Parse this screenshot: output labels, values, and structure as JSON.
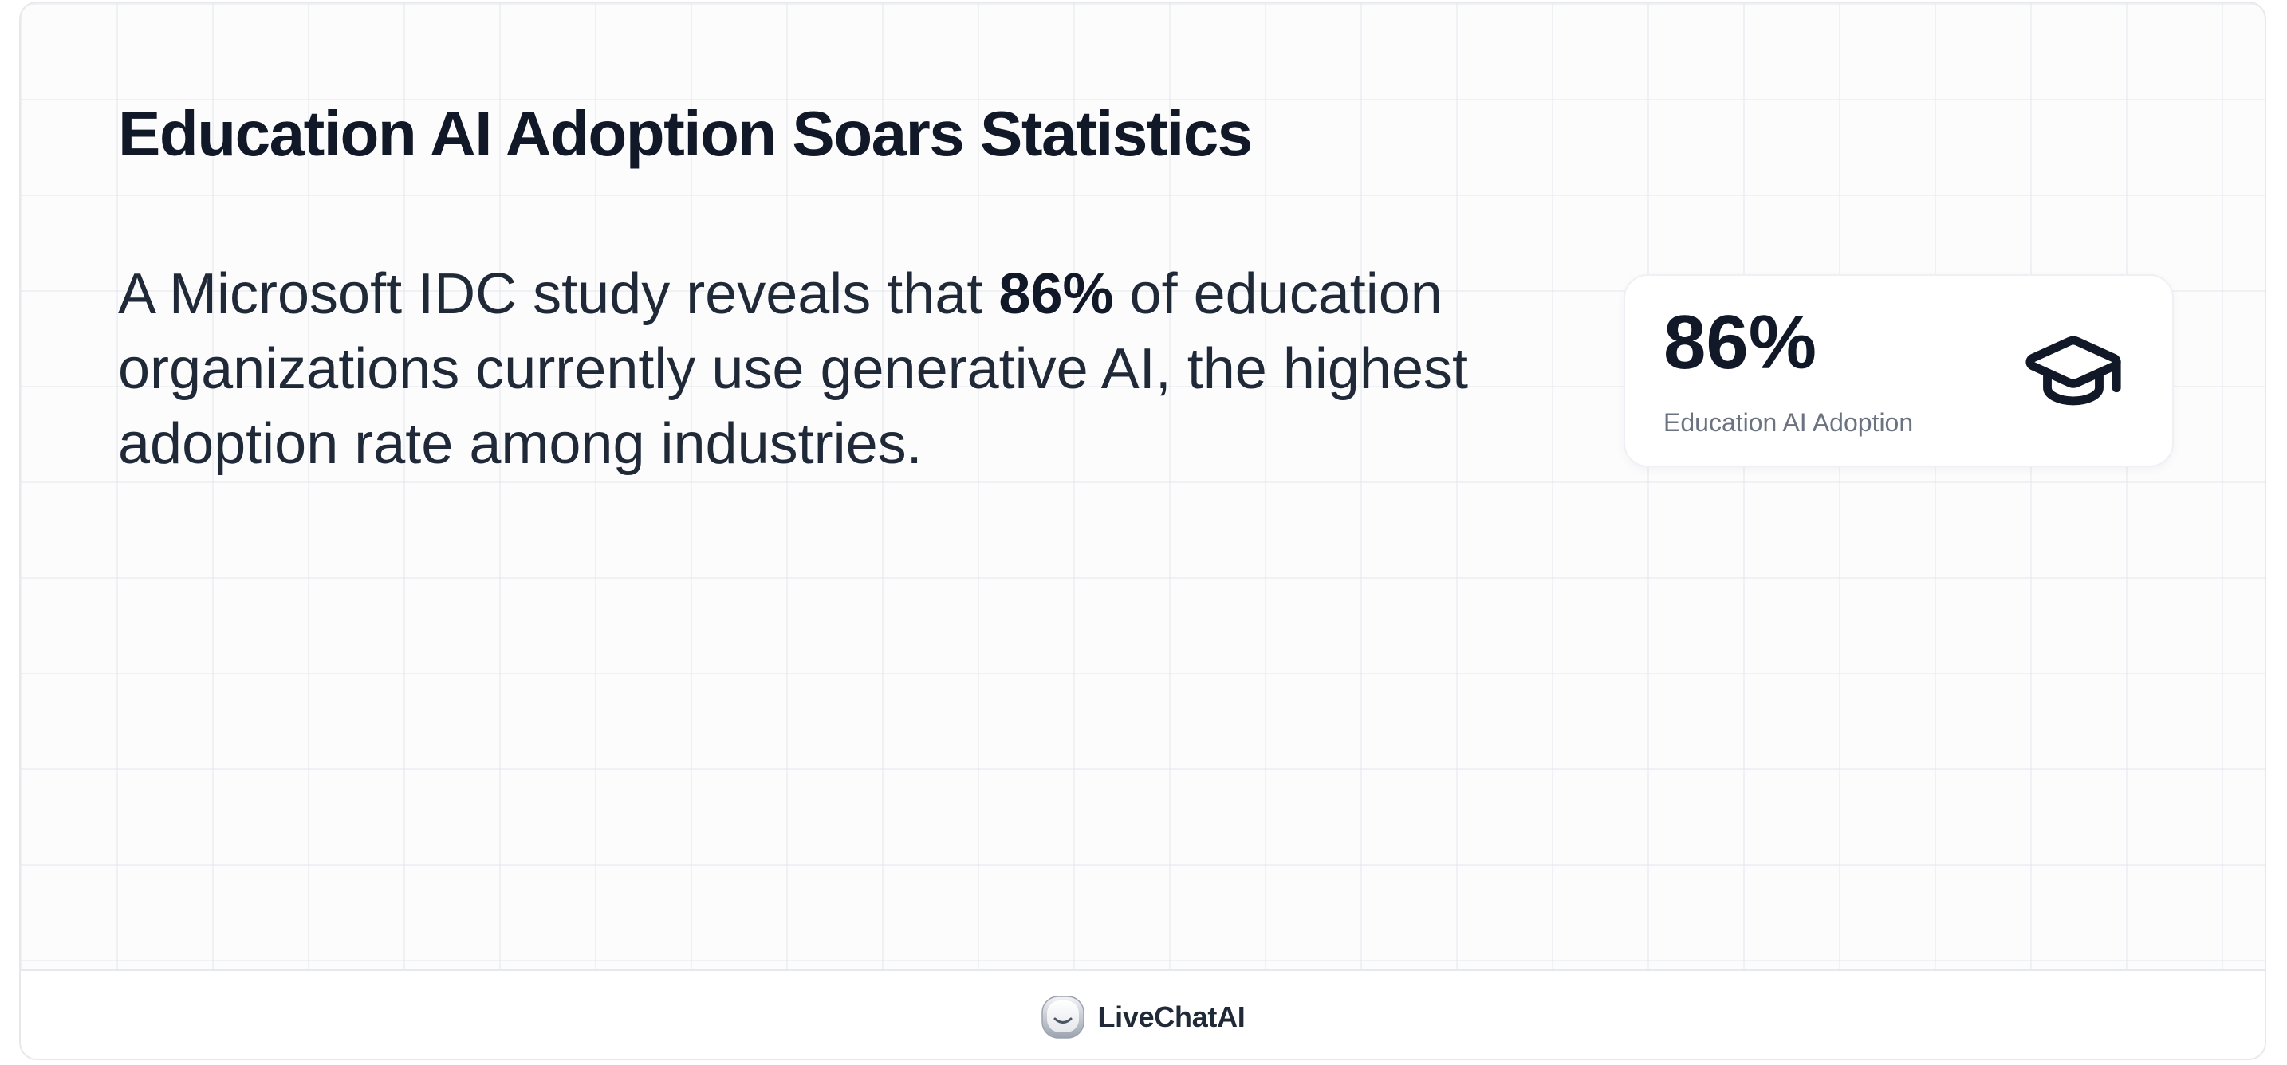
{
  "title": "Education AI Adoption Soars Statistics",
  "body": {
    "prefix": "A Microsoft IDC study reveals that ",
    "highlight": "86%",
    "suffix": " of education organizations currently use generative AI, the highest adoption rate among industries."
  },
  "stat_card": {
    "value": "86%",
    "label": "Education AI Adoption",
    "icon": "graduation-cap-icon"
  },
  "footer": {
    "brand": "LiveChatAI",
    "logo_icon": "livechatai-logo-icon"
  },
  "colors": {
    "text_primary": "#111827",
    "text_secondary": "#6b7280",
    "border": "#e6e8ec"
  }
}
